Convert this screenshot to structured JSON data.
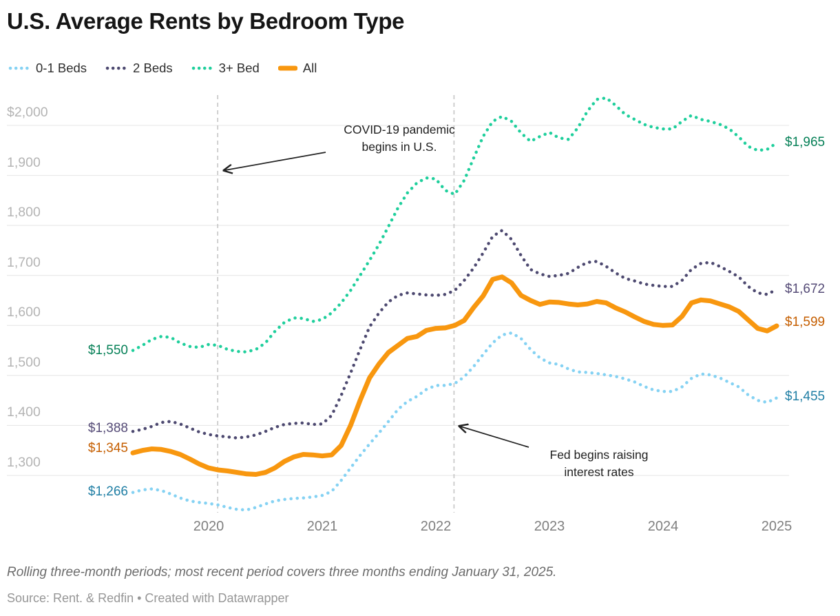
{
  "title": "U.S. Average Rents by Bedroom Type",
  "footer": {
    "note": "Rolling three-month periods; most recent period covers three months ending January 31, 2025.",
    "source": "Source: Rent. & Redfin • Created with Datawrapper"
  },
  "chart_data": {
    "type": "line",
    "title": "U.S. Average Rents by Bedroom Type",
    "x_axis": {
      "ticks": [
        2020,
        2021,
        2022,
        2023,
        2024,
        2025
      ],
      "range": [
        2019.33,
        2025.0
      ],
      "unit": "year (monthly rolling points)"
    },
    "y_axis": {
      "tick_labels": [
        "$2,000",
        "1,900",
        "1,800",
        "1,700",
        "1,600",
        "1,500",
        "1,400",
        "1,300"
      ],
      "tick_values": [
        2000,
        1900,
        1800,
        1700,
        1600,
        1500,
        1400,
        1300
      ],
      "grid": true
    },
    "x_start": 2019.3333,
    "x_step": 0.0833333,
    "series": [
      {
        "name": "0-1 Beds",
        "style": "dotted",
        "color": "#85d2f3",
        "label_color": "#1f7ea4",
        "start_label": "$1,266",
        "end_label": "$1,455",
        "values": [
          1266,
          1271,
          1273,
          1270,
          1263,
          1255,
          1249,
          1246,
          1244,
          1241,
          1236,
          1232,
          1231,
          1236,
          1243,
          1249,
          1252,
          1254,
          1255,
          1257,
          1260,
          1268,
          1290,
          1315,
          1340,
          1363,
          1385,
          1408,
          1432,
          1448,
          1458,
          1472,
          1480,
          1480,
          1484,
          1497,
          1518,
          1542,
          1565,
          1581,
          1585,
          1574,
          1552,
          1535,
          1525,
          1522,
          1513,
          1507,
          1506,
          1504,
          1501,
          1498,
          1493,
          1487,
          1478,
          1471,
          1468,
          1468,
          1477,
          1494,
          1503,
          1501,
          1495,
          1486,
          1477,
          1461,
          1450,
          1446,
          1455
        ]
      },
      {
        "name": "2 Beds",
        "style": "dotted",
        "color": "#4d4970",
        "label_color": "#554b77",
        "start_label": "$1,388",
        "end_label": "$1,672",
        "values": [
          1388,
          1392,
          1398,
          1406,
          1408,
          1403,
          1395,
          1387,
          1382,
          1379,
          1377,
          1375,
          1377,
          1381,
          1388,
          1396,
          1402,
          1404,
          1405,
          1402,
          1403,
          1420,
          1460,
          1505,
          1552,
          1597,
          1625,
          1647,
          1660,
          1665,
          1663,
          1661,
          1660,
          1662,
          1670,
          1690,
          1715,
          1745,
          1778,
          1790,
          1772,
          1740,
          1712,
          1703,
          1698,
          1700,
          1704,
          1716,
          1726,
          1728,
          1718,
          1705,
          1694,
          1689,
          1683,
          1680,
          1678,
          1678,
          1690,
          1712,
          1724,
          1726,
          1718,
          1708,
          1697,
          1678,
          1665,
          1662,
          1672
        ]
      },
      {
        "name": "3+ Bed",
        "style": "dotted",
        "color": "#1fcf9c",
        "label_color": "#068057",
        "start_label": "$1,550",
        "end_label": "$1,965",
        "values": [
          1550,
          1560,
          1572,
          1578,
          1576,
          1565,
          1558,
          1556,
          1562,
          1560,
          1552,
          1548,
          1547,
          1552,
          1565,
          1588,
          1606,
          1615,
          1614,
          1608,
          1612,
          1625,
          1645,
          1670,
          1700,
          1730,
          1762,
          1798,
          1835,
          1865,
          1885,
          1895,
          1893,
          1870,
          1862,
          1890,
          1935,
          1978,
          2008,
          2018,
          2008,
          1985,
          1968,
          1978,
          1986,
          1975,
          1972,
          1995,
          2028,
          2052,
          2055,
          2040,
          2022,
          2012,
          2002,
          1996,
          1993,
          1993,
          2008,
          2020,
          2012,
          2008,
          2002,
          1993,
          1977,
          1958,
          1950,
          1952,
          1965
        ]
      },
      {
        "name": "All",
        "style": "solid",
        "color": "#f8970f",
        "label_color": "#c55e00",
        "start_label": "$1,345",
        "end_label": "$1,599",
        "values": [
          1345,
          1350,
          1353,
          1352,
          1348,
          1342,
          1333,
          1323,
          1315,
          1311,
          1309,
          1306,
          1303,
          1302,
          1306,
          1315,
          1328,
          1337,
          1342,
          1341,
          1339,
          1341,
          1360,
          1400,
          1450,
          1495,
          1523,
          1546,
          1560,
          1574,
          1578,
          1590,
          1594,
          1595,
          1600,
          1610,
          1636,
          1659,
          1692,
          1697,
          1685,
          1660,
          1650,
          1642,
          1647,
          1646,
          1643,
          1641,
          1643,
          1648,
          1645,
          1635,
          1627,
          1617,
          1608,
          1602,
          1600,
          1601,
          1618,
          1645,
          1651,
          1649,
          1643,
          1637,
          1628,
          1611,
          1594,
          1589,
          1599
        ]
      }
    ],
    "annotations": [
      {
        "id": "covid",
        "text": "COVID-19 pandemic\nbegins in U.S.",
        "line_x_year": 2020.08
      },
      {
        "id": "fed",
        "text": "Fed begins raising\ninterest rates",
        "line_x_year": 2022.16
      }
    ],
    "legend_position": "top"
  }
}
